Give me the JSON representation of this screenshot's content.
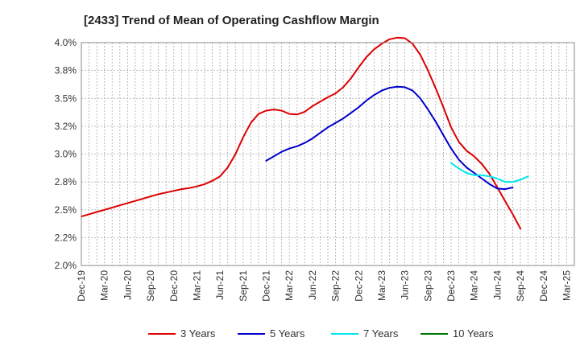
{
  "chart_data": {
    "type": "line",
    "title": "[2433]  Trend of Mean of Operating Cashflow Margin",
    "xlabel": "",
    "ylabel": "",
    "ylim": [
      2.0,
      4.0
    ],
    "y_ticks": [
      "4.0%",
      "3.8%",
      "3.5%",
      "3.2%",
      "3.0%",
      "2.8%",
      "2.5%",
      "2.2%",
      "2.0%"
    ],
    "x_ticks": [
      "Dec-19",
      "Mar-20",
      "Jun-20",
      "Sep-20",
      "Dec-20",
      "Mar-21",
      "Jun-21",
      "Sep-21",
      "Dec-21",
      "Mar-22",
      "Jun-22",
      "Sep-22",
      "Dec-22",
      "Mar-23",
      "Jun-23",
      "Sep-23",
      "Dec-23",
      "Mar-24",
      "Jun-24",
      "Sep-24",
      "Dec-24",
      "Mar-25"
    ],
    "grid": true,
    "legend_position": "bottom",
    "series": [
      {
        "name": "3 Years",
        "color": "#dd0000",
        "start_index": 0,
        "values": [
          2.44,
          2.46,
          2.48,
          2.5,
          2.52,
          2.54,
          2.56,
          2.58,
          2.6,
          2.62,
          2.64,
          2.655,
          2.67,
          2.685,
          2.695,
          2.71,
          2.73,
          2.76,
          2.8,
          2.88,
          3.0,
          3.15,
          3.28,
          3.36,
          3.39,
          3.4,
          3.39,
          3.36,
          3.355,
          3.38,
          3.43,
          3.47,
          3.51,
          3.545,
          3.6,
          3.68,
          3.78,
          3.87,
          3.94,
          3.99,
          4.03,
          4.045,
          4.04,
          3.99,
          3.89,
          3.75,
          3.59,
          3.42,
          3.24,
          3.11,
          3.03,
          2.98,
          2.91,
          2.82,
          2.7,
          2.58,
          2.46,
          2.33
        ]
      },
      {
        "name": "5 Years",
        "color": "#0000cc",
        "start_index": 24,
        "values": [
          2.94,
          2.98,
          3.02,
          3.05,
          3.07,
          3.1,
          3.14,
          3.19,
          3.24,
          3.28,
          3.32,
          3.37,
          3.42,
          3.48,
          3.53,
          3.57,
          3.595,
          3.605,
          3.6,
          3.57,
          3.5,
          3.4,
          3.29,
          3.17,
          3.05,
          2.95,
          2.88,
          2.83,
          2.78,
          2.73,
          2.69,
          2.685,
          2.7
        ]
      },
      {
        "name": "7 Years",
        "color": "#00e5ee",
        "start_index": 48,
        "values": [
          2.92,
          2.87,
          2.83,
          2.81,
          2.81,
          2.8,
          2.78,
          2.75,
          2.75,
          2.77,
          2.8
        ]
      },
      {
        "name": "10 Years",
        "color": "#007700",
        "start_index": 0,
        "values": []
      }
    ],
    "total_points": 64
  }
}
